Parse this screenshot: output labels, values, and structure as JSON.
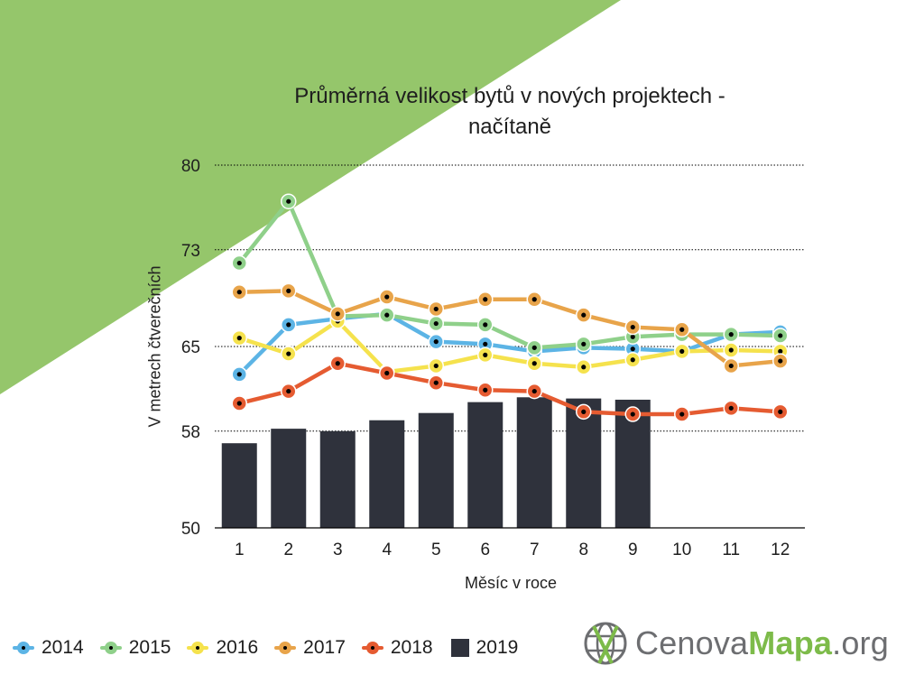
{
  "page": {
    "background_accent": "#95c66b"
  },
  "chart_data": {
    "type": "line",
    "title": "Průměrná velikost bytů v nových projektech - načítaně",
    "xlabel": "Měsíc v roce",
    "ylabel": "V metrech čtverečních",
    "ylim": [
      50,
      80
    ],
    "yticks": [
      "80",
      "73",
      "65",
      "58",
      "50"
    ],
    "categories": [
      "1",
      "2",
      "3",
      "4",
      "5",
      "6",
      "7",
      "8",
      "9",
      "10",
      "11",
      "12"
    ],
    "grid": "horizontal dotted",
    "legend_position": "bottom-left",
    "bar_series": {
      "name": "2019",
      "type": "bar",
      "color": "#2f323c",
      "values": [
        57.0,
        58.2,
        58.0,
        58.9,
        59.5,
        60.4,
        60.8,
        60.7,
        60.6,
        null,
        null,
        null
      ]
    },
    "series": [
      {
        "name": "2014",
        "color": "#5cb4e5",
        "values": [
          62.7,
          66.8,
          67.3,
          67.7,
          65.4,
          65.2,
          64.6,
          64.9,
          64.8,
          64.6,
          66.0,
          66.2
        ]
      },
      {
        "name": "2015",
        "color": "#8fd08a",
        "values": [
          71.9,
          77.0,
          67.5,
          67.6,
          66.9,
          66.8,
          64.9,
          65.2,
          65.8,
          66.0,
          66.0,
          65.9
        ]
      },
      {
        "name": "2016",
        "color": "#f5e24d",
        "values": [
          65.7,
          64.4,
          67.1,
          62.9,
          63.4,
          64.3,
          63.6,
          63.3,
          63.9,
          64.6,
          64.7,
          64.6
        ]
      },
      {
        "name": "2017",
        "color": "#e8a44a",
        "values": [
          69.5,
          69.6,
          67.7,
          69.1,
          68.1,
          68.9,
          68.9,
          67.6,
          66.6,
          66.4,
          63.4,
          63.8
        ]
      },
      {
        "name": "2018",
        "color": "#e55b31",
        "values": [
          60.3,
          61.3,
          63.6,
          62.8,
          62.0,
          61.4,
          61.3,
          59.6,
          59.4,
          59.4,
          59.9,
          59.6
        ]
      }
    ]
  },
  "legend": {
    "items": [
      {
        "label": "2014",
        "color": "#5cb4e5",
        "kind": "line"
      },
      {
        "label": "2015",
        "color": "#8fd08a",
        "kind": "line"
      },
      {
        "label": "2016",
        "color": "#f5e24d",
        "kind": "line"
      },
      {
        "label": "2017",
        "color": "#e8a44a",
        "kind": "line"
      },
      {
        "label": "2018",
        "color": "#e55b31",
        "kind": "line"
      },
      {
        "label": "2019",
        "color": "#2f323c",
        "kind": "bar"
      }
    ]
  },
  "logo": {
    "text_part1": "Cenova",
    "text_part2": "Mapa",
    "text_part3": ".org",
    "icon": "globe-grid-icon"
  }
}
